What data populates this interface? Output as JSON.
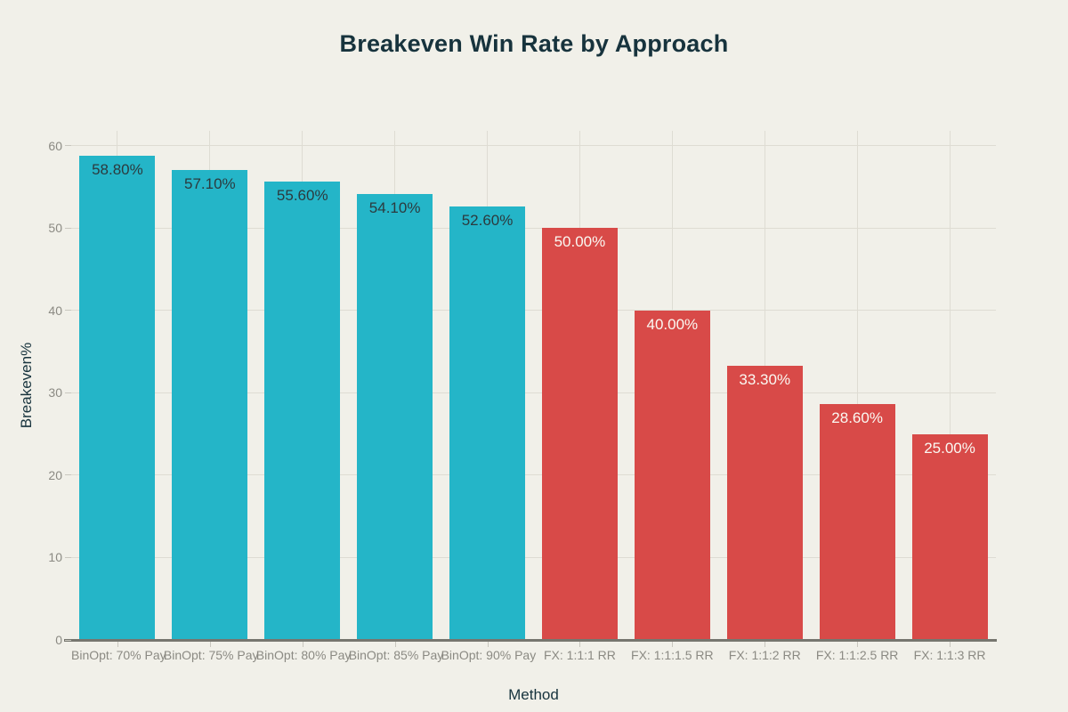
{
  "palette": {
    "background": "#f1f0e9",
    "teal": "#24b5c8",
    "red": "#d84a48",
    "heading_text": "#17333d",
    "axis_tick_text": "#8b8a83",
    "gridline": "#dedcd3",
    "baseline": "#76766f",
    "tick_mark": "#c9c7bf",
    "value_label_on_teal": "#2c3a3e",
    "value_label_on_red": "#faf9f3"
  },
  "chart_data": {
    "type": "bar",
    "title": "Breakeven Win Rate by Approach",
    "xlabel": "Method",
    "ylabel": "Breakeven%",
    "categories": [
      "BinOpt: 70% Pay",
      "BinOpt: 75% Pay",
      "BinOpt: 80% Pay",
      "BinOpt: 85% Pay",
      "BinOpt: 90% Pay",
      "FX: 1:1:1 RR",
      "FX: 1:1:1.5 RR",
      "FX: 1:1:2 RR",
      "FX: 1:1:2.5 RR",
      "FX: 1:1:3 RR"
    ],
    "values": [
      58.8,
      57.1,
      55.6,
      54.1,
      52.6,
      50.0,
      40.0,
      33.3,
      28.6,
      25.0
    ],
    "value_labels": [
      "58.80%",
      "57.10%",
      "55.60%",
      "54.10%",
      "52.60%",
      "50.00%",
      "40.00%",
      "33.30%",
      "28.60%",
      "25.00%"
    ],
    "bar_color_keys": [
      "teal",
      "teal",
      "teal",
      "teal",
      "teal",
      "red",
      "red",
      "red",
      "red",
      "red"
    ],
    "value_label_color_keys": [
      "value_label_on_teal",
      "value_label_on_teal",
      "value_label_on_teal",
      "value_label_on_teal",
      "value_label_on_teal",
      "value_label_on_red",
      "value_label_on_red",
      "value_label_on_red",
      "value_label_on_red",
      "value_label_on_red"
    ],
    "yticks": [
      0,
      10,
      20,
      30,
      40,
      50,
      60
    ],
    "ylim": [
      0,
      61.8
    ],
    "grid": true,
    "legend": "none"
  }
}
